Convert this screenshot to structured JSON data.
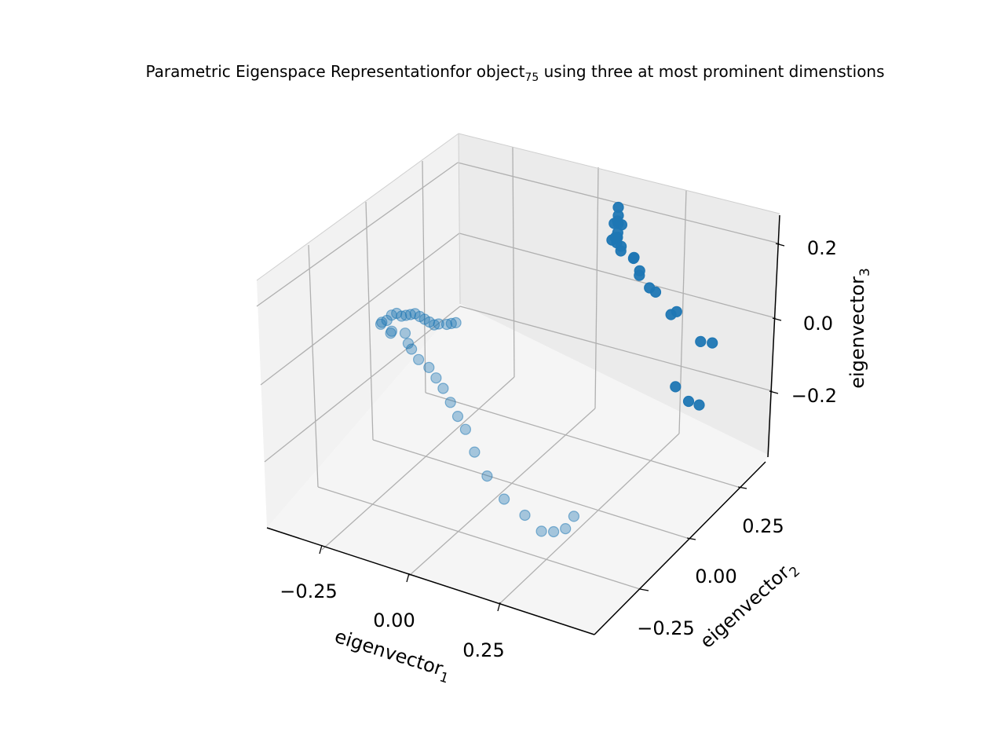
{
  "chart_data": {
    "type": "scatter",
    "projection": "3d",
    "title": {
      "main": "Parametric Eigenspace Representationfor object",
      "subscript": "75",
      "rest": " using three at most prominent dimenstions"
    },
    "axes": {
      "x": {
        "label": "eigenvector",
        "label_sub": "1",
        "ticks": [
          "−0.25",
          "0.00",
          "0.25"
        ]
      },
      "y": {
        "label": "eigenvector",
        "label_sub": "2",
        "ticks": [
          "−0.25",
          "0.00",
          "0.25"
        ]
      },
      "z": {
        "label": "eigenvector",
        "label_sub": "3",
        "ticks": [
          "−0.2",
          "0.0",
          "0.2"
        ]
      }
    },
    "grid": true,
    "marker_color": "#1f77b4",
    "pane_color": "#f2f2f2",
    "grid_color": "#b0b0b0",
    "points_front": [
      [
        -0.31,
        -0.42,
        -0.13
      ],
      [
        -0.3,
        -0.41,
        -0.14
      ],
      [
        -0.29,
        -0.4,
        -0.15
      ],
      [
        -0.28,
        -0.4,
        -0.15
      ],
      [
        -0.29,
        -0.39,
        -0.14
      ],
      [
        -0.28,
        -0.39,
        -0.13
      ],
      [
        -0.27,
        -0.38,
        -0.15
      ],
      [
        -0.26,
        -0.37,
        -0.15
      ],
      [
        -0.25,
        -0.36,
        -0.14
      ],
      [
        -0.24,
        -0.35,
        -0.14
      ],
      [
        -0.23,
        -0.33,
        -0.11
      ],
      [
        -0.22,
        -0.33,
        -0.1
      ],
      [
        -0.17,
        -0.3,
        -0.08
      ],
      [
        -0.16,
        -0.29,
        -0.08
      ],
      [
        -0.1,
        -0.27,
        -0.06
      ],
      [
        -0.09,
        -0.26,
        -0.05
      ],
      [
        -0.04,
        -0.23,
        -0.04
      ],
      [
        -0.03,
        -0.22,
        -0.04
      ],
      [
        0.02,
        -0.2,
        -0.04
      ],
      [
        0.06,
        -0.18,
        -0.02
      ],
      [
        0.1,
        -0.18,
        -0.07
      ],
      [
        0.14,
        -0.16,
        -0.03
      ],
      [
        0.18,
        -0.18,
        -0.12
      ],
      [
        0.26,
        -0.14,
        -0.06
      ],
      [
        0.25,
        -0.05,
        -0.1
      ],
      [
        0.28,
        -0.08,
        -0.17
      ],
      [
        0.32,
        -0.02,
        -0.09
      ]
    ],
    "points_back": [
      [
        -0.2,
        0.28,
        0.25
      ],
      [
        -0.18,
        0.3,
        0.27
      ],
      [
        -0.15,
        0.3,
        0.26
      ],
      [
        -0.13,
        0.32,
        0.28
      ],
      [
        -0.1,
        0.31,
        0.28
      ],
      [
        -0.07,
        0.33,
        0.28
      ],
      [
        -0.05,
        0.34,
        0.28
      ],
      [
        -0.02,
        0.35,
        0.27
      ],
      [
        0.02,
        0.36,
        0.27
      ],
      [
        0.05,
        0.37,
        0.26
      ],
      [
        0.08,
        0.38,
        0.25
      ],
      [
        0.11,
        0.39,
        0.23
      ],
      [
        0.14,
        0.4,
        0.21
      ],
      [
        0.16,
        0.4,
        0.18
      ],
      [
        0.17,
        0.39,
        0.11
      ],
      [
        0.19,
        0.38,
        0.04
      ],
      [
        0.2,
        0.35,
        -0.05
      ],
      [
        0.21,
        0.31,
        -0.13
      ],
      [
        0.22,
        0.28,
        -0.2
      ],
      [
        0.22,
        0.25,
        -0.23
      ],
      [
        0.22,
        0.22,
        -0.25
      ],
      [
        0.2,
        0.18,
        -0.26
      ],
      [
        -0.22,
        0.25,
        0.22
      ],
      [
        -0.24,
        0.22,
        0.2
      ],
      [
        -0.26,
        0.19,
        0.17
      ],
      [
        -0.27,
        0.17,
        0.14
      ],
      [
        -0.28,
        0.15,
        0.12
      ],
      [
        -0.29,
        0.13,
        0.1
      ],
      [
        -0.3,
        0.11,
        0.08
      ],
      [
        -0.31,
        0.09,
        0.05
      ],
      [
        -0.32,
        0.07,
        0.02
      ],
      [
        -0.33,
        0.05,
        -0.01
      ],
      [
        -0.34,
        0.03,
        -0.04
      ],
      [
        -0.35,
        0.01,
        -0.06
      ],
      [
        -0.35,
        -0.01,
        -0.08
      ],
      [
        -0.36,
        -0.03,
        -0.1
      ],
      [
        -0.37,
        -0.05,
        -0.12
      ]
    ]
  }
}
